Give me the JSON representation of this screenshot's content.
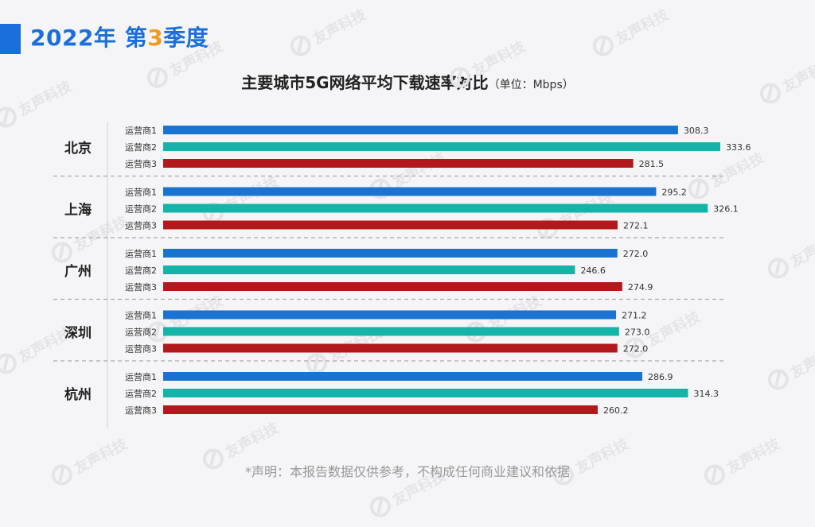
{
  "header": {
    "year_label": "2022年",
    "quarter_prefix": "第",
    "quarter_num": "3",
    "quarter_suffix": "季度"
  },
  "chart_data": {
    "type": "bar",
    "orientation": "horizontal",
    "title": "主要城市5G网络平均下载速率对比",
    "unit_label": "（单位：Mbps）",
    "grid": false,
    "groups": [
      {
        "city": "北京",
        "bars": [
          {
            "operator": "运营商1",
            "value": 308.3,
            "label": "308.3"
          },
          {
            "operator": "运营商2",
            "value": 333.6,
            "label": "333.6"
          },
          {
            "operator": "运营商3",
            "value": 281.5,
            "label": "281.5"
          }
        ]
      },
      {
        "city": "上海",
        "bars": [
          {
            "operator": "运营商1",
            "value": 295.2,
            "label": "295.2"
          },
          {
            "operator": "运营商2",
            "value": 326.1,
            "label": "326.1"
          },
          {
            "operator": "运营商3",
            "value": 272.1,
            "label": "272.1"
          }
        ]
      },
      {
        "city": "广州",
        "bars": [
          {
            "operator": "运营商1",
            "value": 272.0,
            "label": "272.0"
          },
          {
            "operator": "运营商2",
            "value": 246.6,
            "label": "246.6"
          },
          {
            "operator": "运营商3",
            "value": 274.9,
            "label": "274.9"
          }
        ]
      },
      {
        "city": "深圳",
        "bars": [
          {
            "operator": "运营商1",
            "value": 271.2,
            "label": "271.2"
          },
          {
            "operator": "运营商2",
            "value": 273.0,
            "label": "273.0"
          },
          {
            "operator": "运营商3",
            "value": 272.0,
            "label": "272.0"
          }
        ]
      },
      {
        "city": "杭州",
        "bars": [
          {
            "operator": "运营商1",
            "value": 286.9,
            "label": "286.9"
          },
          {
            "operator": "运营商2",
            "value": 314.3,
            "label": "314.3"
          },
          {
            "operator": "运营商3",
            "value": 260.2,
            "label": "260.2"
          }
        ]
      }
    ],
    "colors": {
      "运营商1": "#1a73d1",
      "运营商2": "#14b5a8",
      "运营商3": "#b3191c"
    }
  },
  "disclaimer": "*声明：本报告数据仅供参考，不构成任何商业建议和依据",
  "watermark": {
    "text": "友声科技",
    "icon": "company-logo-icon"
  }
}
